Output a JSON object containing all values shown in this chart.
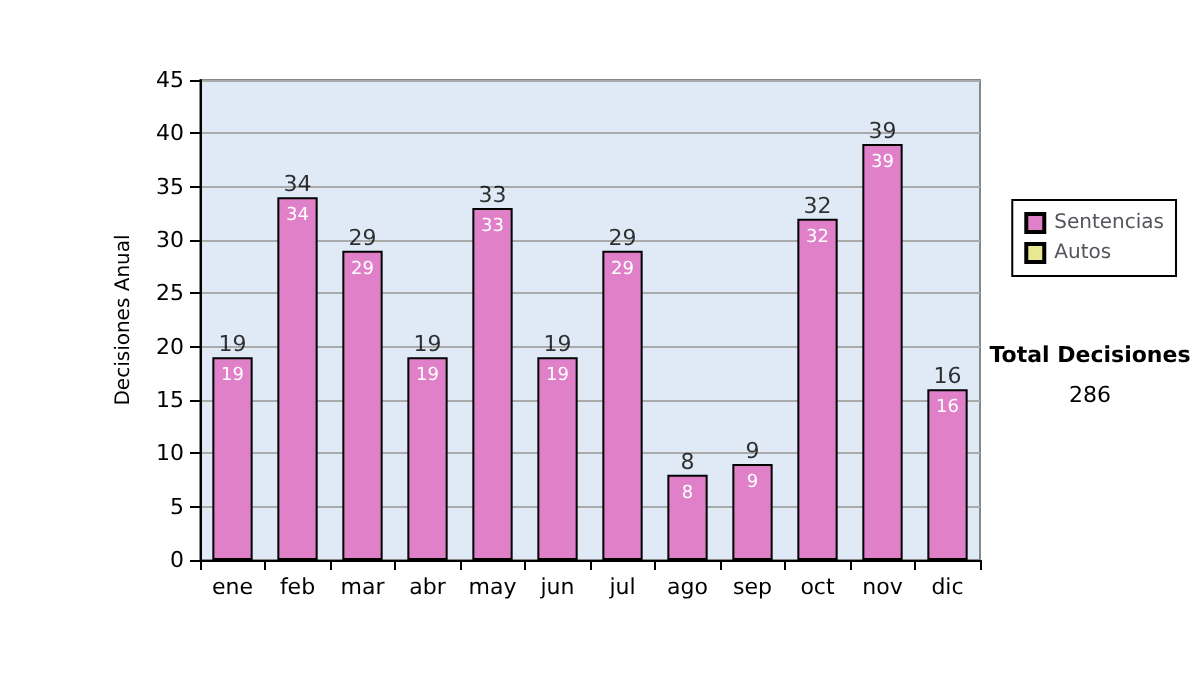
{
  "chart_data": {
    "type": "bar",
    "ylabel": "Decisiones Anual",
    "categories": [
      "ene",
      "feb",
      "mar",
      "abr",
      "may",
      "jun",
      "jul",
      "ago",
      "sep",
      "oct",
      "nov",
      "dic"
    ],
    "series": [
      {
        "name": "Sentencias",
        "color": "#e080c8",
        "values": [
          19,
          34,
          29,
          19,
          33,
          19,
          29,
          8,
          9,
          32,
          39,
          16
        ]
      },
      {
        "name": "Autos",
        "color": "#e8e890",
        "values": [
          null,
          null,
          null,
          null,
          null,
          null,
          null,
          null,
          null,
          null,
          null,
          null
        ]
      }
    ],
    "stacked": true,
    "data_labels": true,
    "totals": [
      "19",
      "34",
      "29",
      "19",
      "33",
      "19",
      "29",
      "8",
      "9",
      "32",
      "39",
      "16"
    ],
    "ylim": [
      0,
      45
    ],
    "yticks": [
      0,
      5,
      10,
      15,
      20,
      25,
      30,
      35,
      40,
      45
    ],
    "grid": "y",
    "legend": "right",
    "annotations": [
      "Total Decisiones",
      "286"
    ]
  }
}
